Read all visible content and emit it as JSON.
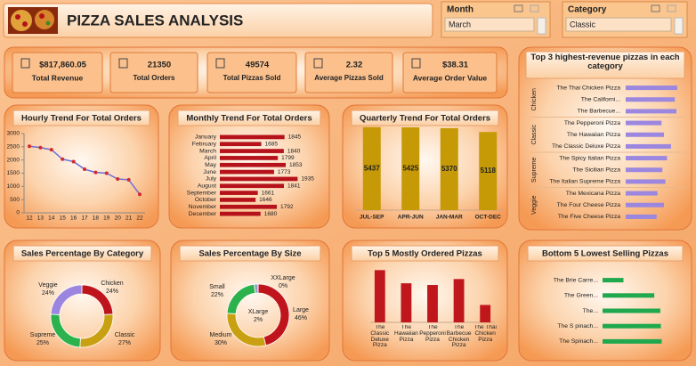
{
  "header": {
    "title": "PIZZA SALES ANALYSIS"
  },
  "slicers": [
    {
      "title": "Month",
      "selected": "March"
    },
    {
      "title": "Category",
      "selected": "Classic"
    }
  ],
  "kpis": [
    {
      "value": "$817,860.05",
      "label": "Total Revenue"
    },
    {
      "value": "21350",
      "label": "Total Orders"
    },
    {
      "value": "49574",
      "label": "Total Pizzas Sold"
    },
    {
      "value": "2.32",
      "label": "Average Pizzas Sold"
    },
    {
      "value": "$38.31",
      "label": "Average Order Value"
    }
  ],
  "chart_data": [
    {
      "type": "line",
      "title": "Hourly Trend For Total Orders",
      "categories": [
        "12",
        "13",
        "14",
        "15",
        "16",
        "17",
        "18",
        "19",
        "20",
        "21",
        "22"
      ],
      "values": [
        2520,
        2470,
        2390,
        2030,
        1940,
        1650,
        1530,
        1500,
        1280,
        1250,
        700
      ],
      "color": "#6a6fd8",
      "marker_color": "#d42a2a",
      "ylim": [
        0,
        3000
      ],
      "yticks": [
        0,
        500,
        1000,
        1500,
        2000,
        2500,
        3000
      ]
    },
    {
      "type": "bar",
      "orientation": "horizontal",
      "title": "Monthly Trend For Total Orders",
      "categories": [
        "January",
        "February",
        "March",
        "April",
        "May",
        "June",
        "July",
        "August",
        "September",
        "October",
        "November",
        "December"
      ],
      "values": [
        1845,
        1685,
        1840,
        1799,
        1853,
        1773,
        1935,
        1841,
        1661,
        1646,
        1792,
        1680
      ],
      "color": "#b5121b",
      "xlim": [
        1400,
        2000
      ],
      "data_labels": true
    },
    {
      "type": "bar",
      "title": "Quarterly Trend For Total Orders",
      "categories": [
        "JUL-SEP",
        "APR-JUN",
        "JAN-MAR",
        "OCT-DEC"
      ],
      "values": [
        5437,
        5425,
        5370,
        5118
      ],
      "color": "#c59a06",
      "ylim": [
        0,
        5600
      ],
      "data_labels": true
    },
    {
      "type": "pie",
      "donut": true,
      "title": "Sales Percentage By Category",
      "categories": [
        "Chicken",
        "Classic",
        "Supreme",
        "Veggie"
      ],
      "values": [
        24,
        27,
        25,
        24
      ],
      "value_labels": [
        "24%",
        "27%",
        "25%",
        "24%"
      ],
      "colors": [
        "#c0141c",
        "#c9a012",
        "#2bb24c",
        "#9a86df"
      ]
    },
    {
      "type": "pie",
      "donut": true,
      "title": "Sales Percentage By Size",
      "categories": [
        "Large",
        "Medium",
        "Small",
        "XLarge",
        "XXLarge"
      ],
      "values": [
        46,
        30,
        22,
        2,
        0
      ],
      "value_labels": [
        "46%",
        "30%",
        "22%",
        "2%",
        "0%"
      ],
      "colors": [
        "#c0141c",
        "#c9a012",
        "#2bb24c",
        "#8fa3c8",
        "#3b6fd0"
      ]
    },
    {
      "type": "bar",
      "title": "Top 5 Mostly Ordered Pizzas",
      "categories": [
        "The Classic Deluxe Pizza",
        "The Hawaiian Pizza",
        "The Pepperoni Pizza",
        "The Barbecue Chicken Pizza",
        "The Thai Chicken Pizza"
      ],
      "values": [
        2453,
        2422,
        2418,
        2432,
        2371
      ],
      "color": "#c0171c",
      "ylim": [
        2330,
        2460
      ]
    },
    {
      "type": "bar",
      "orientation": "horizontal",
      "title": "Top 3 highest-revenue pizzas in each category",
      "groups": [
        {
          "name": "Chicken",
          "categories": [
            "The Thai Chicken Pizza",
            "The Californi...",
            "The Barbecue..."
          ],
          "values": [
            43434,
            41410,
            42768
          ]
        },
        {
          "name": "Classic",
          "categories": [
            "The Pepperoni Pizza",
            "The Hawaiian Pizza",
            "The Classic Deluxe Pizza"
          ],
          "values": [
            30162,
            32273,
            38180
          ]
        },
        {
          "name": "Supreme",
          "categories": [
            "The Spicy Italian Pizza",
            "The Sicilian Pizza",
            "The Italian Supreme Pizza"
          ],
          "values": [
            34831,
            30940,
            33477
          ]
        },
        {
          "name": "Veggie",
          "categories": [
            "The Mexicana Pizza",
            "The Four Cheese Pizza",
            "The Five Cheese Pizza"
          ],
          "values": [
            26781,
            32265,
            26066
          ]
        }
      ],
      "color": "#9b86e0",
      "xlim": [
        0,
        45000
      ]
    },
    {
      "type": "bar",
      "orientation": "horizontal",
      "title": "Bottom 5 Lowest Selling Pizzas",
      "categories": [
        "The Brie Carre...",
        "The Green...",
        "The...",
        "The S pinach...",
        "The Spinach..."
      ],
      "values": [
        380,
        940,
        1050,
        1060,
        1075
      ],
      "color": "#1fa84d",
      "xlim": [
        0,
        1100
      ]
    }
  ]
}
